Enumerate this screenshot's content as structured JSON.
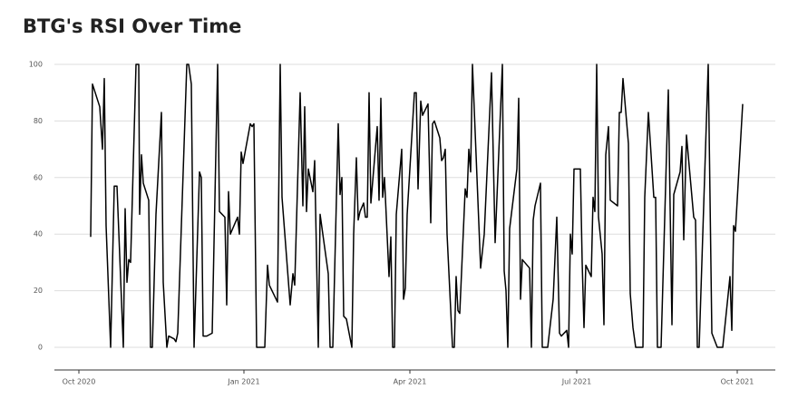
{
  "chart_data": {
    "type": "line",
    "title": "BTG's RSI Over Time",
    "x": [
      6.5,
      7.5,
      11.5,
      13,
      14,
      15,
      17.5,
      19.5,
      21,
      24.5,
      25.5,
      26.5,
      27.5,
      28.5,
      31.5,
      33,
      33.5,
      34.5,
      35.5,
      38.5,
      39.5,
      40.5,
      42.5,
      45.5,
      46.5,
      48.5,
      49.5,
      52.5,
      53.5,
      54.5,
      59.5,
      60.5,
      62,
      63.5,
      66.5,
      67.5,
      68.5,
      70.5,
      73.5,
      76.5,
      77.5,
      80.5,
      81.5,
      82.5,
      83.5,
      87.5,
      88.5,
      89.5,
      90.5,
      94.5,
      95.5,
      96.5,
      98,
      99.5,
      102.5,
      104,
      105,
      109.5,
      111,
      112,
      116.5,
      118,
      119,
      122,
      123.5,
      124.5,
      125.5,
      126.5,
      129,
      130,
      132,
      133,
      137.5,
      138.5,
      140,
      143,
      144,
      145,
      146,
      147.5,
      150.5,
      151.5,
      153,
      154,
      155,
      157,
      158,
      159,
      160,
      161,
      164.5,
      165.5,
      166.5,
      167.5,
      168.5,
      171,
      172,
      173,
      174,
      175,
      178,
      179,
      180,
      181,
      185,
      186,
      187,
      188.5,
      189.5,
      192.5,
      194,
      195,
      196,
      199,
      200,
      201,
      202,
      203,
      206,
      207,
      208,
      209,
      210,
      213,
      214,
      215,
      216,
      217,
      221.5,
      223.5,
      227.5,
      229.5,
      233.5,
      234.5,
      235.5,
      236.5,
      237.5,
      241.5,
      242.5,
      243.5,
      244.5,
      248.5,
      249.5,
      250.5,
      251.5,
      254.5,
      255.5,
      258.5,
      261.5,
      263.5,
      265,
      266,
      269,
      270,
      271,
      272,
      273,
      276.5,
      277.5,
      278.5,
      279.5,
      282.5,
      283.5,
      284.5,
      285.5,
      286.5,
      288.5,
      289.5,
      290.5,
      292,
      293,
      297,
      298,
      299,
      300,
      303,
      304,
      305.5,
      307,
      311,
      312,
      314,
      317,
      318,
      319,
      321,
      325,
      327,
      328,
      331.5,
      332.5,
      333.5,
      335,
      339,
      340,
      341,
      342,
      347,
      349,
      352,
      355,
      359,
      360,
      361,
      362,
      366
    ],
    "series": [
      {
        "color": "#000000",
        "values": [
          39,
          93,
          85,
          70,
          95,
          43,
          0,
          57,
          57,
          0,
          49,
          23,
          31,
          30,
          100,
          100,
          47,
          68,
          58,
          52,
          0,
          0,
          47,
          83,
          23,
          0,
          4,
          3,
          2,
          5,
          100,
          100,
          93,
          0,
          62,
          60,
          4,
          4,
          5,
          100,
          48,
          46,
          15,
          55,
          40,
          46,
          40,
          69,
          65,
          79,
          78,
          79,
          0,
          0,
          0,
          29,
          22,
          16,
          100,
          53,
          15,
          26,
          22,
          90,
          50,
          85,
          48,
          63,
          55,
          66,
          0,
          47,
          26,
          0,
          0,
          79,
          54,
          60,
          11,
          10,
          0,
          40,
          67,
          45,
          48,
          51,
          46,
          46,
          90,
          51,
          78,
          52,
          88,
          53,
          60,
          25,
          39,
          0,
          0,
          47,
          70,
          17,
          21,
          47,
          90,
          90,
          56,
          87,
          82,
          86,
          44,
          79,
          80,
          74,
          66,
          67,
          70,
          40,
          0,
          0,
          25,
          13,
          12,
          56,
          53,
          70,
          62,
          100,
          28,
          40,
          97,
          37,
          100,
          27,
          20,
          0,
          42,
          63,
          88,
          17,
          31,
          28,
          0,
          45,
          50,
          58,
          0,
          0,
          17,
          46,
          5,
          4,
          6,
          0,
          40,
          33,
          63,
          63,
          30,
          7,
          29,
          25,
          53,
          48,
          100,
          46,
          33,
          8,
          68,
          78,
          52,
          50,
          83,
          83,
          95,
          72,
          19,
          7,
          0,
          0,
          53,
          83,
          53,
          53,
          0,
          0,
          91,
          8,
          54,
          62,
          71,
          38,
          75,
          46,
          45,
          0,
          0,
          100,
          5,
          0,
          0,
          25,
          6,
          43,
          41,
          86
        ]
      }
    ],
    "xlim": [
      -13.5,
      384
    ],
    "xticks": [
      {
        "value": 0,
        "label": "Oct 2020"
      },
      {
        "value": 91,
        "label": "Jan 2021"
      },
      {
        "value": 182.5,
        "label": "Apr 2021"
      },
      {
        "value": 274.5,
        "label": "Jul 2021"
      },
      {
        "value": 363,
        "label": "Oct 2021"
      }
    ],
    "ylim": [
      -8,
      104
    ],
    "yticks": [
      0,
      20,
      40,
      60,
      80,
      100
    ],
    "grid": true
  }
}
